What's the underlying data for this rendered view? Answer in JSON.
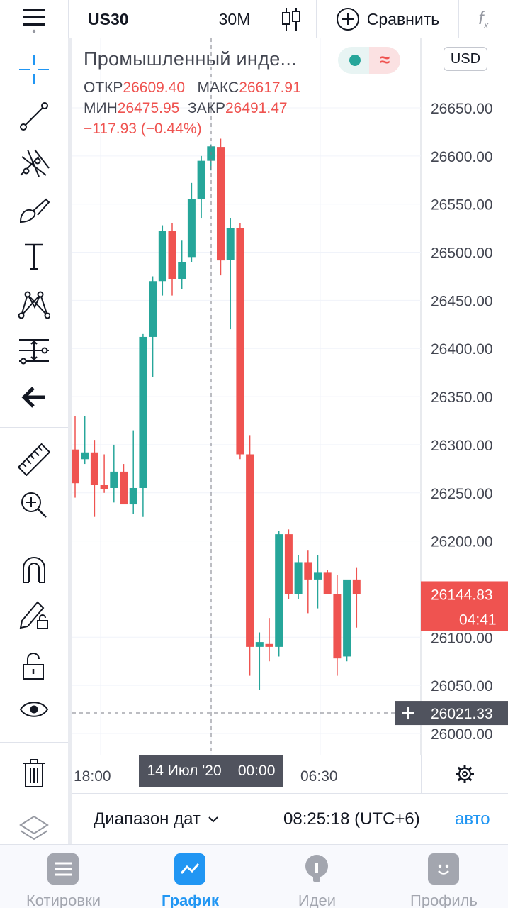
{
  "header": {
    "menu_icon": "hamburger-menu-icon",
    "symbol": "US30",
    "interval": "30M",
    "chart_type_icon": "candles-icon",
    "compare_label": "Сравнить",
    "indicators_icon": "fx-indicators-icon"
  },
  "legend": {
    "title": "Промышленный инде...",
    "open_label": "ОТКР",
    "open_value": "26609.40",
    "high_label": "МАКС",
    "high_value": "26617.91",
    "low_label": "МИН",
    "low_value": "26475.95",
    "close_label": "ЗАКР",
    "close_value": "26491.47",
    "change": "−117.93 (−0.44%)"
  },
  "currency": "USD",
  "tools": [
    {
      "name": "crosshair-icon"
    },
    {
      "name": "trend-line-icon"
    },
    {
      "name": "pitchfork-icon"
    },
    {
      "name": "brush-icon"
    },
    {
      "name": "text-tool-icon"
    },
    {
      "name": "pattern-icon"
    },
    {
      "name": "prediction-icon"
    },
    {
      "name": "back-arrow-icon"
    },
    {
      "name": "ruler-icon"
    },
    {
      "name": "zoom-in-icon"
    },
    {
      "name": "magnet-icon"
    },
    {
      "name": "pencil-lock-icon"
    },
    {
      "name": "unlock-icon"
    },
    {
      "name": "eye-icon"
    },
    {
      "name": "trash-icon"
    },
    {
      "name": "layers-icon"
    }
  ],
  "colors": {
    "up": "#26a69a",
    "down": "#ef5350",
    "accent": "#2196f3"
  },
  "price_axis": {
    "labels": [
      "26650.00",
      "26600.00",
      "26550.00",
      "26500.00",
      "26450.00",
      "26400.00",
      "26350.00",
      "26300.00",
      "26250.00",
      "26200.00",
      "26100.00",
      "26050.00",
      "26000.00"
    ],
    "current_price": "26144.83",
    "countdown": "04:41",
    "crosshair_price": "26021.33"
  },
  "time_axis": {
    "labels": [
      "18:00",
      "06:30"
    ],
    "crosshair_date": "14 Июл '20",
    "crosshair_time": "00:00"
  },
  "chart_data": {
    "type": "candlestick",
    "ylim": [
      25975,
      26700
    ],
    "candles": [
      {
        "o": 26295,
        "h": 26330,
        "l": 26245,
        "c": 26260
      },
      {
        "o": 26285,
        "h": 26330,
        "l": 26280,
        "c": 26292
      },
      {
        "o": 26292,
        "h": 26305,
        "l": 26225,
        "c": 26258
      },
      {
        "o": 26258,
        "h": 26290,
        "l": 26250,
        "c": 26254
      },
      {
        "o": 26255,
        "h": 26300,
        "l": 26240,
        "c": 26272
      },
      {
        "o": 26272,
        "h": 26280,
        "l": 26245,
        "c": 26238
      },
      {
        "o": 26238,
        "h": 26315,
        "l": 26228,
        "c": 26255
      },
      {
        "o": 26255,
        "h": 26415,
        "l": 26225,
        "c": 26412
      },
      {
        "o": 26412,
        "h": 26475,
        "l": 26370,
        "c": 26470
      },
      {
        "o": 26470,
        "h": 26528,
        "l": 26455,
        "c": 26522
      },
      {
        "o": 26522,
        "h": 26530,
        "l": 26455,
        "c": 26472
      },
      {
        "o": 26472,
        "h": 26512,
        "l": 26462,
        "c": 26490
      },
      {
        "o": 26495,
        "h": 26572,
        "l": 26490,
        "c": 26555
      },
      {
        "o": 26555,
        "h": 26600,
        "l": 26535,
        "c": 26595
      },
      {
        "o": 26595,
        "h": 26612,
        "l": 26585,
        "c": 26610
      },
      {
        "o": 26609.4,
        "h": 26617.91,
        "l": 26475.95,
        "c": 26491.47
      },
      {
        "o": 26492,
        "h": 26535,
        "l": 26420,
        "c": 26525
      },
      {
        "o": 26525,
        "h": 26530,
        "l": 26285,
        "c": 26290
      },
      {
        "o": 26290,
        "h": 26310,
        "l": 26060,
        "c": 26090
      },
      {
        "o": 26090,
        "h": 26105,
        "l": 26045,
        "c": 26095
      },
      {
        "o": 26093,
        "h": 26120,
        "l": 26075,
        "c": 26090
      },
      {
        "o": 26090,
        "h": 26210,
        "l": 26080,
        "c": 26207
      },
      {
        "o": 26207,
        "h": 26212,
        "l": 26140,
        "c": 26145
      },
      {
        "o": 26145,
        "h": 26185,
        "l": 26140,
        "c": 26178
      },
      {
        "o": 26178,
        "h": 26190,
        "l": 26125,
        "c": 26160
      },
      {
        "o": 26160,
        "h": 26185,
        "l": 26130,
        "c": 26167
      },
      {
        "o": 26167,
        "h": 26170,
        "l": 26145,
        "c": 26145
      },
      {
        "o": 26145,
        "h": 26165,
        "l": 26060,
        "c": 26078
      },
      {
        "o": 26080,
        "h": 26155,
        "l": 26075,
        "c": 26160
      },
      {
        "o": 26160,
        "h": 26172,
        "l": 26110,
        "c": 26145
      }
    ]
  },
  "footer": {
    "range_label": "Диапазон дат",
    "clock": "08:25:18 (UTC+6)",
    "auto_label": "авто"
  },
  "nav": {
    "items": [
      {
        "label": "Котировки",
        "icon": "quotes-icon"
      },
      {
        "label": "График",
        "icon": "chart-icon"
      },
      {
        "label": "Идеи",
        "icon": "ideas-icon"
      },
      {
        "label": "Профиль",
        "icon": "profile-icon"
      }
    ]
  }
}
